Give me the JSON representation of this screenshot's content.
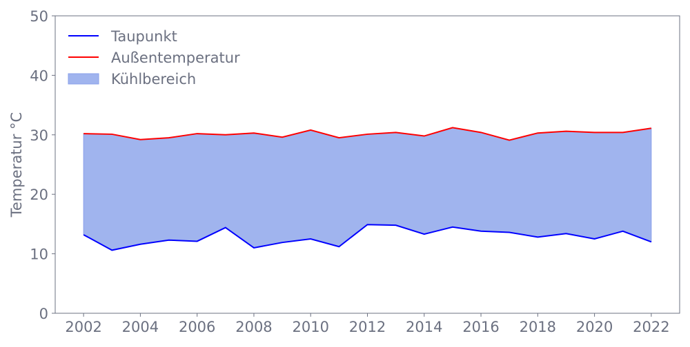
{
  "chart_data": {
    "type": "area",
    "title": "",
    "xlabel": "",
    "ylabel": "Temperatur °C",
    "xlim": [
      2001,
      2023
    ],
    "ylim": [
      0,
      50
    ],
    "xticks": [
      "2002",
      "2004",
      "2006",
      "2008",
      "2010",
      "2012",
      "2014",
      "2016",
      "2018",
      "2020",
      "2022"
    ],
    "yticks": [
      "0",
      "10",
      "20",
      "30",
      "40",
      "50"
    ],
    "grid": false,
    "legend_position": "top-left",
    "x": [
      2002,
      2003,
      2004,
      2005,
      2006,
      2007,
      2008,
      2009,
      2010,
      2011,
      2012,
      2013,
      2014,
      2015,
      2016,
      2017,
      2018,
      2019,
      2020,
      2021,
      2022
    ],
    "series": [
      {
        "name": "Taupunkt",
        "kind": "line",
        "color": "#0000ff",
        "values": [
          13.2,
          10.6,
          11.6,
          12.3,
          12.1,
          14.4,
          11.0,
          11.9,
          12.5,
          11.2,
          14.9,
          14.8,
          13.3,
          14.5,
          13.8,
          13.6,
          12.8,
          13.4,
          12.5,
          13.8,
          12.0
        ]
      },
      {
        "name": "Außentemperatur",
        "kind": "line",
        "color": "#ff0000",
        "values": [
          30.2,
          30.1,
          29.2,
          29.5,
          30.2,
          30.0,
          30.3,
          29.6,
          30.8,
          29.5,
          30.1,
          30.4,
          29.8,
          31.2,
          30.4,
          29.1,
          30.3,
          30.6,
          30.4,
          30.4,
          31.1
        ]
      },
      {
        "name": "Kühlbereich",
        "kind": "fill_between",
        "color": "#a0b4ee",
        "between": [
          "Taupunkt",
          "Außentemperatur"
        ]
      }
    ]
  }
}
